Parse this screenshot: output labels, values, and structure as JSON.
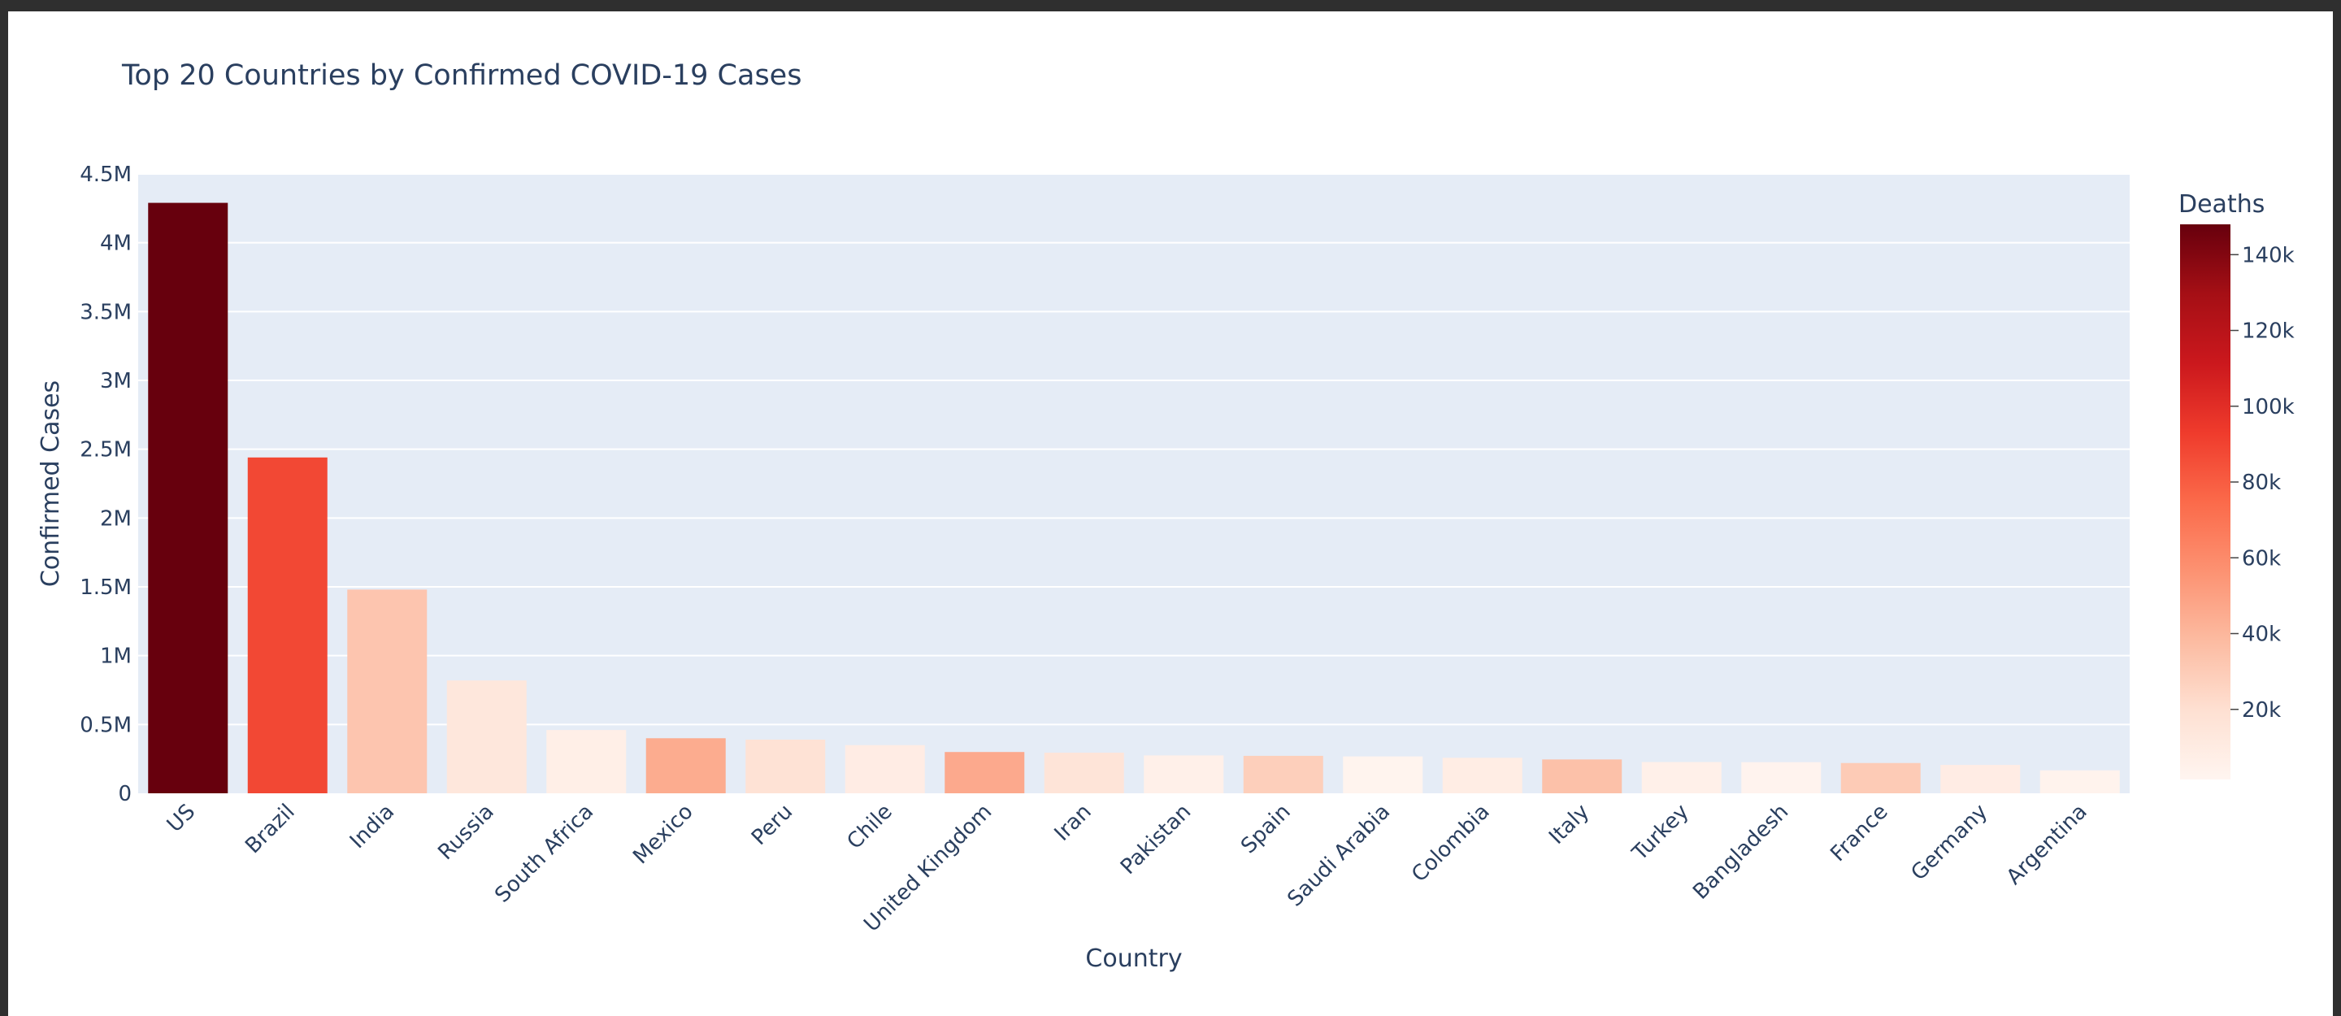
{
  "chart_data": {
    "type": "bar",
    "title": "Top 20 Countries by Confirmed COVID-19 Cases",
    "xlabel": "Country",
    "ylabel": "Confirmed Cases",
    "ylim": [
      0,
      4500000
    ],
    "y_ticks": [
      0,
      500000,
      1000000,
      1500000,
      2000000,
      2500000,
      3000000,
      3500000,
      4000000,
      4500000
    ],
    "y_tick_labels": [
      "0",
      "0.5M",
      "1M",
      "1.5M",
      "2M",
      "2.5M",
      "3M",
      "3.5M",
      "4M",
      "4.5M"
    ],
    "categories": [
      "US",
      "Brazil",
      "India",
      "Russia",
      "South Africa",
      "Mexico",
      "Peru",
      "Chile",
      "United Kingdom",
      "Iran",
      "Pakistan",
      "Spain",
      "Saudi Arabia",
      "Colombia",
      "Italy",
      "Turkey",
      "Bangladesh",
      "France",
      "Germany",
      "Argentina"
    ],
    "values": [
      4290000,
      2440000,
      1480000,
      820000,
      460000,
      400000,
      390000,
      350000,
      300000,
      295000,
      275000,
      272000,
      268000,
      258000,
      246000,
      227000,
      226000,
      220000,
      206000,
      167000
    ],
    "color_values": [
      148000,
      88000,
      33000,
      13500,
      7000,
      45000,
      18000,
      9000,
      46000,
      16000,
      5800,
      28400,
      2800,
      8800,
      35100,
      5600,
      3000,
      30200,
      9100,
      3100
    ],
    "colorbar": {
      "title": "Deaths",
      "range": [
        1500,
        148000
      ],
      "ticks": [
        20000,
        40000,
        60000,
        80000,
        100000,
        120000,
        140000
      ],
      "tick_labels": [
        "20k",
        "40k",
        "60k",
        "80k",
        "100k",
        "120k",
        "140k"
      ],
      "colorscale": [
        "#fff5f0",
        "#fee0d2",
        "#fcbba1",
        "#fc9272",
        "#fb6a4a",
        "#ef3b2c",
        "#cb181d",
        "#a50f15",
        "#67000d"
      ]
    },
    "plot_background": "#e5ecf6",
    "grid": true
  }
}
